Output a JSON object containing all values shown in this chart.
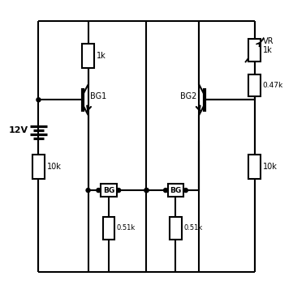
{
  "bg_color": "#ffffff",
  "line_color": "#000000",
  "line_width": 1.5,
  "fig_width": 3.61,
  "fig_height": 3.62,
  "dpi": 100,
  "labels": {
    "voltage": "12V",
    "r1k": "1k",
    "r10k_left": "10k",
    "r051k_left": "0.51k",
    "r051k_right": "0.51k",
    "r10k_right": "10k",
    "r047k": "0.47k",
    "vr1k": "VR\n1k",
    "bg1": "BG1",
    "bg2": "BG2",
    "bg_left": "BG",
    "bg_right": "BG"
  },
  "font_size": 7,
  "xlim": [
    0,
    10
  ],
  "ylim": [
    0,
    10
  ]
}
